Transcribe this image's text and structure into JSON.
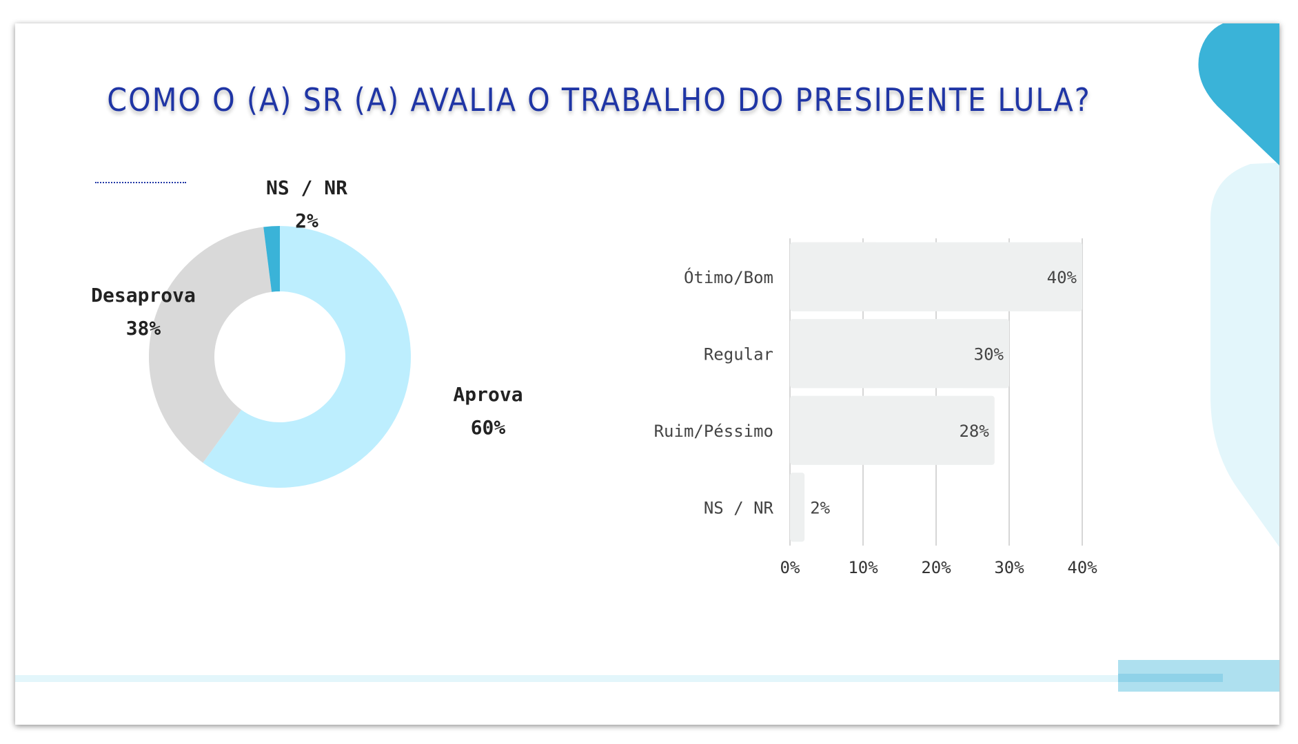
{
  "title": "COMO O (A) SR (A) AVALIA O TRABALHO DO PRESIDENTE LULA?",
  "colors": {
    "title": "#1f35a5",
    "donut_aprova": "#bdeefe",
    "donut_desaprova": "#d9d9d9",
    "donut_nsnr": "#3ab3d8",
    "bar_fill": "#eef0f0",
    "grid": "#d6d6d6",
    "deco_blue": "#3ab3d8",
    "deco_light": "#e3f6fb"
  },
  "chart_data": [
    {
      "type": "pie",
      "variant": "donut",
      "categories": [
        "Aprova",
        "Desaprova",
        "NS / NR"
      ],
      "values": [
        60,
        38,
        2
      ],
      "data_labels": [
        "60%",
        "38%",
        "2%"
      ],
      "legend": "none"
    },
    {
      "type": "bar",
      "orientation": "horizontal",
      "categories": [
        "Ótimo/Bom",
        "Regular",
        "Ruim/Péssimo",
        "NS / NR"
      ],
      "values": [
        40,
        30,
        28,
        2
      ],
      "data_labels": [
        "40%",
        "30%",
        "28%",
        "2%"
      ],
      "xlim": [
        0,
        40
      ],
      "xticks": [
        "0%",
        "10%",
        "20%",
        "30%",
        "40%"
      ],
      "grid": true
    }
  ]
}
